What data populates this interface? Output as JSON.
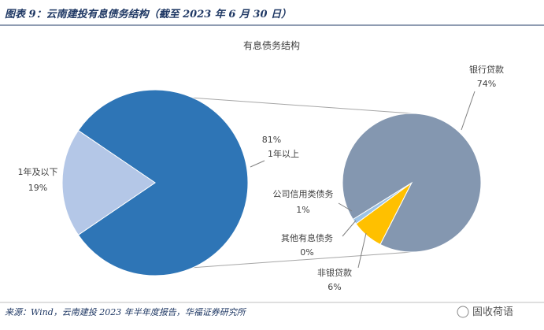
{
  "header": {
    "title": "图表 9：云南建投有息债务结构（截至 2023 年 6 月 30 日）"
  },
  "chart_data": {
    "type": "pie-of-pie",
    "title": "有息债务结构",
    "categories": [
      "1年以上",
      "1年及以下"
    ],
    "values": [
      81,
      19
    ],
    "value_labels": [
      "81%",
      "19%"
    ],
    "colors": [
      "#2e75b6",
      "#b4c7e7"
    ],
    "sub": {
      "categories": [
        "非银贷款",
        "公司信用类债务",
        "其他有息债务",
        "银行贷款"
      ],
      "values": [
        6,
        1,
        0,
        74
      ],
      "value_labels": [
        "6%",
        "1%",
        "0%",
        "74%"
      ],
      "colors": [
        "#ffc000",
        "#9dc3e6",
        "#a5a5a5",
        "#8497b0"
      ]
    }
  },
  "footer": {
    "source": "来源：Wind，云南建投 2023 年半年度报告，华福证券研究所",
    "watermark": "固收荷语"
  }
}
